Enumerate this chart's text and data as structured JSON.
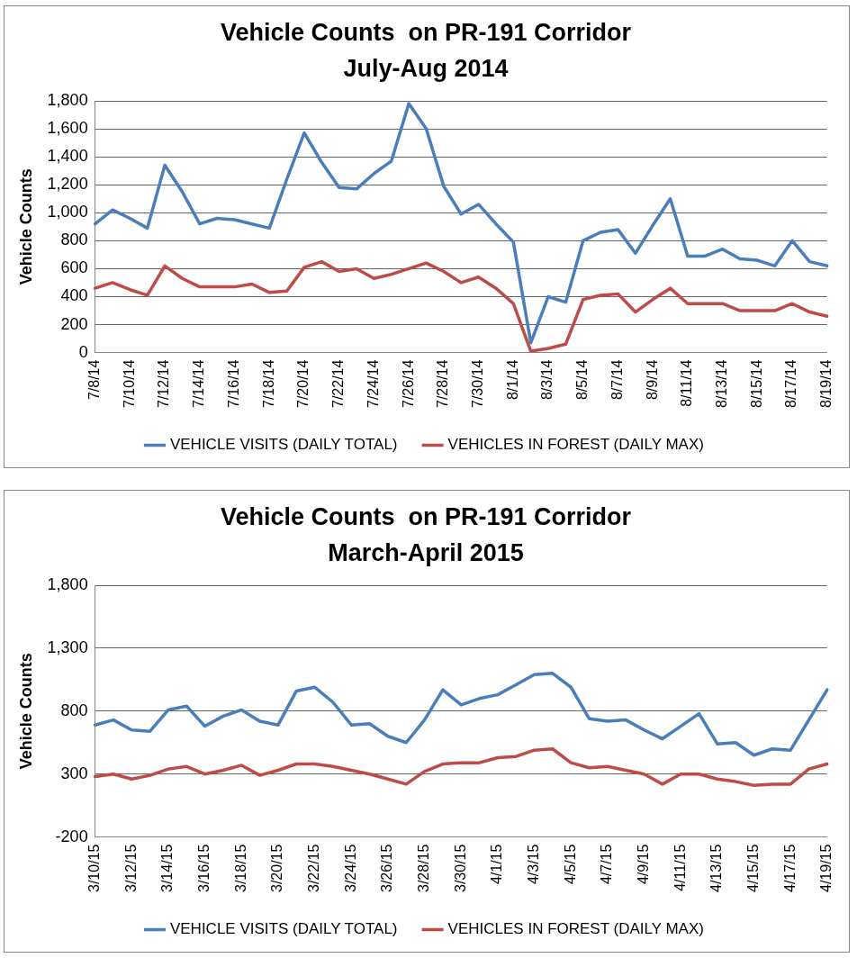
{
  "chart_data": [
    {
      "type": "line",
      "title": "Vehicle Counts  on PR-191 Corridor",
      "subtitle": "July-Aug 2014",
      "ylabel": "Vehicle Counts",
      "categories": [
        "7/8/14",
        null,
        "7/10/14",
        null,
        "7/12/14",
        null,
        "7/14/14",
        null,
        "7/16/14",
        null,
        "7/18/14",
        null,
        "7/20/14",
        null,
        "7/22/14",
        null,
        "7/24/14",
        null,
        "7/26/14",
        null,
        "7/28/14",
        null,
        "7/30/14",
        null,
        "8/1/14",
        null,
        "8/3/14",
        null,
        "8/5/14",
        null,
        "8/7/14",
        null,
        "8/9/14",
        null,
        "8/11/14",
        null,
        "8/13/14",
        null,
        "8/15/14",
        null,
        "8/17/14",
        null,
        "8/19/14"
      ],
      "series": [
        {
          "name": "VEHICLE VISITS (DAILY TOTAL)",
          "color": "#4a7ebb",
          "values": [
            920,
            1020,
            960,
            890,
            1340,
            1150,
            920,
            960,
            950,
            920,
            890,
            1240,
            1570,
            1360,
            1180,
            1170,
            1280,
            1370,
            1780,
            1600,
            1190,
            990,
            1060,
            920,
            790,
            70,
            400,
            360,
            800,
            860,
            880,
            710,
            910,
            1100,
            690,
            690,
            740,
            670,
            660,
            620,
            800,
            650,
            620
          ]
        },
        {
          "name": "VEHICLES IN FOREST (DAILY MAX)",
          "color": "#be4b48",
          "values": [
            460,
            500,
            450,
            410,
            620,
            530,
            470,
            470,
            470,
            490,
            430,
            440,
            610,
            650,
            580,
            600,
            530,
            560,
            600,
            640,
            580,
            500,
            540,
            460,
            350,
            10,
            30,
            60,
            380,
            410,
            420,
            290,
            380,
            460,
            350,
            350,
            350,
            300,
            300,
            300,
            350,
            290,
            260
          ]
        }
      ],
      "ylim": [
        0,
        1800
      ],
      "yticks": [
        0,
        {
          "value": 200,
          "label": "200"
        },
        400,
        600,
        800,
        {
          "value": 1000,
          "label": "1,000"
        },
        {
          "value": 1200,
          "label": "1,200"
        },
        {
          "value": 1400,
          "label": "1,400"
        },
        {
          "value": 1600,
          "label": "1,600"
        },
        {
          "value": 1800,
          "label": "1,800"
        }
      ],
      "grid": "y",
      "legend": "bottom",
      "marker": "none",
      "line_style": "solid"
    },
    {
      "type": "line",
      "title": "Vehicle Counts  on PR-191 Corridor",
      "subtitle": "March-April 2015",
      "ylabel": "Vehicle Counts",
      "categories": [
        "3/10/15",
        null,
        "3/12/15",
        null,
        "3/14/15",
        null,
        "3/16/15",
        null,
        "3/18/15",
        null,
        "3/20/15",
        null,
        "3/22/15",
        null,
        "3/24/15",
        null,
        "3/26/15",
        null,
        "3/28/15",
        null,
        "3/30/15",
        null,
        "4/1/15",
        null,
        "4/3/15",
        null,
        "4/5/15",
        null,
        "4/7/15",
        null,
        "4/9/15",
        null,
        "4/11/15",
        null,
        "4/13/15",
        null,
        "4/15/15",
        null,
        "4/17/15",
        null,
        "4/19/15"
      ],
      "series": [
        {
          "name": "VEHICLE VISITS (DAILY TOTAL)",
          "color": "#4a7ebb",
          "values": [
            690,
            730,
            650,
            640,
            810,
            840,
            680,
            760,
            810,
            720,
            690,
            960,
            990,
            870,
            690,
            700,
            600,
            550,
            730,
            970,
            850,
            900,
            930,
            1010,
            1090,
            1100,
            990,
            740,
            720,
            730,
            650,
            580,
            680,
            780,
            540,
            550,
            450,
            500,
            490,
            730,
            970
          ]
        },
        {
          "name": "VEHICLES IN FOREST (DAILY MAX)",
          "color": "#be4b48",
          "values": [
            280,
            300,
            260,
            290,
            340,
            360,
            300,
            330,
            370,
            290,
            330,
            380,
            380,
            360,
            330,
            300,
            260,
            220,
            320,
            380,
            390,
            390,
            430,
            440,
            490,
            500,
            390,
            350,
            360,
            330,
            300,
            220,
            300,
            300,
            260,
            240,
            210,
            220,
            220,
            340,
            380
          ]
        }
      ],
      "ylim": [
        -200,
        1800
      ],
      "yticks": [
        -200,
        300,
        800,
        {
          "value": 1300,
          "label": "1,300"
        },
        {
          "value": 1800,
          "label": "1,800"
        }
      ],
      "grid": "y",
      "legend": "bottom",
      "marker": "none",
      "line_style": "solid"
    }
  ]
}
